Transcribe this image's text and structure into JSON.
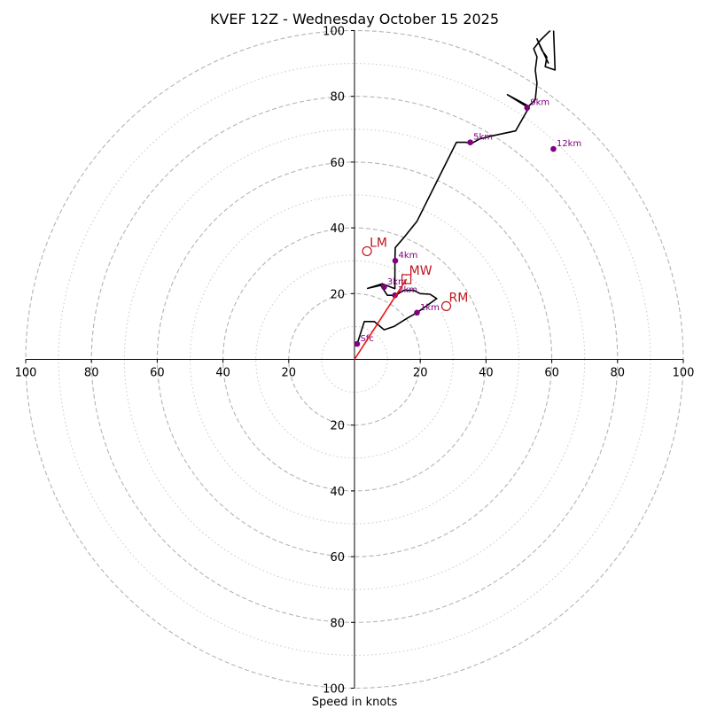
{
  "chart_data": {
    "type": "scatter",
    "title": "KVEF 12Z - Wednesday October 15 2025",
    "xlabel": "Speed in knots",
    "ylabel": "",
    "xlim": [
      -100,
      100
    ],
    "ylim": [
      -100,
      100
    ],
    "grid": true,
    "rings_dashed": [
      20,
      40,
      60,
      80,
      100
    ],
    "rings_dotted": [
      10,
      30,
      50,
      70,
      90
    ],
    "ticks": {
      "top": [
        "20",
        "40",
        "60",
        "80",
        "100"
      ],
      "bottom": [
        "20",
        "40",
        "60",
        "80",
        "100"
      ],
      "left": [
        "100",
        "80",
        "60",
        "40",
        "20"
      ],
      "right": [
        "20",
        "40",
        "60",
        "80",
        "100"
      ]
    },
    "hodograph_trace": {
      "color": "#000000",
      "points": [
        [
          0.8,
          4.7
        ],
        [
          3,
          11.5
        ],
        [
          6,
          11.5
        ],
        [
          9,
          9
        ],
        [
          12,
          10
        ],
        [
          16,
          12.5
        ],
        [
          19,
          14.2
        ],
        [
          25,
          18.5
        ],
        [
          23,
          19.8
        ],
        [
          20,
          20
        ],
        [
          18,
          21
        ],
        [
          15,
          21
        ],
        [
          12.5,
          19.5
        ],
        [
          10,
          19.5
        ],
        [
          8,
          22.5
        ],
        [
          4,
          21.6
        ],
        [
          8.5,
          23
        ],
        [
          12.3,
          21.5
        ],
        [
          12.3,
          25
        ],
        [
          12.3,
          30
        ],
        [
          12.4,
          34
        ],
        [
          15,
          37
        ],
        [
          19,
          42
        ],
        [
          24,
          52
        ],
        [
          31,
          66
        ],
        [
          34,
          66
        ],
        [
          35.5,
          65.6
        ],
        [
          38,
          67
        ],
        [
          42,
          68
        ],
        [
          49,
          69.5
        ],
        [
          53,
          76.5
        ],
        [
          46.5,
          80.5
        ],
        [
          53,
          77
        ],
        [
          55,
          79
        ],
        [
          55.5,
          84
        ],
        [
          55,
          88
        ],
        [
          55.5,
          92
        ],
        [
          54.5,
          94.5
        ],
        [
          56.5,
          97
        ],
        [
          60.5,
          101
        ],
        [
          61,
          88
        ],
        [
          58,
          89
        ],
        [
          58.5,
          92
        ],
        [
          57,
          94
        ],
        [
          55.5,
          97.5
        ],
        [
          59,
          90
        ]
      ]
    },
    "height_markers": {
      "color": "#800080",
      "points": [
        {
          "label": "Sfc",
          "u": 0.8,
          "v": 4.7
        },
        {
          "label": "1km",
          "u": 19,
          "v": 14.2
        },
        {
          "label": "2km",
          "u": 12.3,
          "v": 19.5
        },
        {
          "label": "3km",
          "u": 9,
          "v": 22
        },
        {
          "label": "4km",
          "u": 12.4,
          "v": 30
        },
        {
          "label": "5km",
          "u": 35.2,
          "v": 66
        },
        {
          "label": "9km",
          "u": 52.5,
          "v": 76.5
        },
        {
          "label": "12km",
          "u": 60.5,
          "v": 64
        }
      ]
    },
    "storm_motion": {
      "color": "#c0141c",
      "points": [
        {
          "label": "LM",
          "u": 3.8,
          "v": 32.9,
          "marker": "circle"
        },
        {
          "label": "MW",
          "u": 15.8,
          "v": 24.4,
          "marker": "square"
        },
        {
          "label": "RM",
          "u": 27.9,
          "v": 16.2,
          "marker": "circle"
        }
      ],
      "vector": {
        "from": [
          0,
          0
        ],
        "to": [
          15.8,
          24.4
        ]
      }
    }
  }
}
